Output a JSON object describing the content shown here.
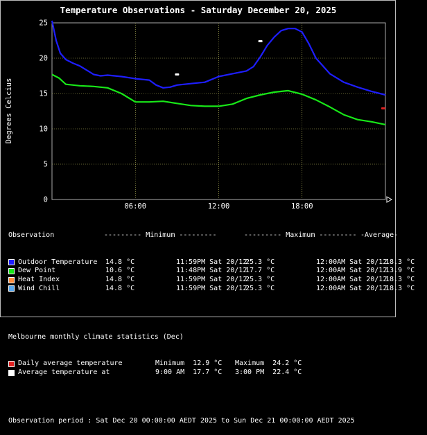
{
  "title": "Temperature Observations - Saturday December 20, 2025",
  "chart_data": {
    "type": "line",
    "title": "Temperature Observations - Saturday December 20, 2025",
    "ylabel": "Degrees Celcius",
    "xlabel": "",
    "ylim": [
      0,
      25
    ],
    "xlim": [
      0,
      24
    ],
    "yticks": [
      "0",
      "5",
      "10",
      "15",
      "20",
      "25"
    ],
    "xticks": [
      {
        "x": 6,
        "label": "06:00"
      },
      {
        "x": 12,
        "label": "12:00"
      },
      {
        "x": 18,
        "label": "18:00"
      }
    ],
    "grid": true,
    "series": [
      {
        "name": "Outdoor Temperature",
        "color": "#1e1eff",
        "x": [
          0,
          0.3,
          0.6,
          1,
          1.5,
          2,
          2.5,
          3,
          3.5,
          4,
          5,
          6,
          7,
          7.5,
          8,
          8.5,
          9,
          10,
          11,
          12,
          13,
          14,
          14.5,
          15,
          15.5,
          16,
          16.5,
          17,
          17.5,
          18,
          18.5,
          19,
          20,
          21,
          22,
          23,
          24
        ],
        "y": [
          25.3,
          22.5,
          20.7,
          19.8,
          19.3,
          18.9,
          18.3,
          17.7,
          17.5,
          17.6,
          17.4,
          17.1,
          16.9,
          16.2,
          15.8,
          15.9,
          16.2,
          16.4,
          16.6,
          17.4,
          17.8,
          18.2,
          18.8,
          20.2,
          21.8,
          23.0,
          23.9,
          24.2,
          24.2,
          23.7,
          22.0,
          20.0,
          17.8,
          16.6,
          15.9,
          15.3,
          14.8
        ]
      },
      {
        "name": "Dew Point",
        "color": "#18e818",
        "x": [
          0,
          0.5,
          1,
          2,
          3,
          4,
          5,
          6,
          7,
          8,
          9,
          10,
          11,
          12,
          13,
          14,
          15,
          16,
          17,
          18,
          19,
          20,
          21,
          22,
          23,
          24
        ],
        "y": [
          17.7,
          17.2,
          16.3,
          16.1,
          16.0,
          15.8,
          15.0,
          13.8,
          13.8,
          13.9,
          13.6,
          13.3,
          13.2,
          13.2,
          13.5,
          14.3,
          14.8,
          15.2,
          15.4,
          14.9,
          14.1,
          13.1,
          12.0,
          11.3,
          11.0,
          10.6
        ]
      }
    ],
    "markers": [
      {
        "name": "Daily average temperature",
        "color": "#e02020",
        "x": 23.85,
        "y": 12.9
      },
      {
        "name": "Average temperature at",
        "color": "#ffffff",
        "x": 9.0,
        "y": 17.7
      },
      {
        "name": "Average temperature at",
        "color": "#ffffff",
        "x": 15.0,
        "y": 22.4
      }
    ]
  },
  "stats": {
    "headers": {
      "observation": "Observation",
      "minimum": "--------- Minimum ---------",
      "maximum": "--------- Maximum ---------",
      "average": "-Average-"
    },
    "rows": [
      {
        "name": "Outdoor Temperature",
        "color": "#1e1eff",
        "min": "14.8 °C",
        "min_time": "11:59PM Sat 20/12",
        "max": "25.3 °C",
        "max_time": "12:00AM Sat 20/12",
        "avg": "18.3 °C"
      },
      {
        "name": "Dew Point",
        "color": "#18e818",
        "min": "10.6 °C",
        "min_time": "11:48PM Sat 20/12",
        "max": "17.7 °C",
        "max_time": "12:00AM Sat 20/12",
        "avg": "13.9 °C"
      },
      {
        "name": "Heat Index",
        "color": "#ff8c3c",
        "min": "14.8 °C",
        "min_time": "11:59PM Sat 20/12",
        "max": "25.3 °C",
        "max_time": "12:00AM Sat 20/12",
        "avg": "18.3 °C"
      },
      {
        "name": "Wind Chill",
        "color": "#5aaaf0",
        "min": "14.8 °C",
        "min_time": "11:59PM Sat 20/12",
        "max": "25.3 °C",
        "max_time": "12:00AM Sat 20/12",
        "avg": "18.3 °C"
      }
    ]
  },
  "monthly": {
    "title": "Melbourne monthly climate statistics (Dec)",
    "rows": [
      {
        "name": "Daily average temperature",
        "color": "#e02020",
        "a": "Minimum  12.9 °C",
        "b": "Maximum  24.2 °C"
      },
      {
        "name": "Average temperature at",
        "color": "#ffffff",
        "a": "9:00 AM  17.7 °C",
        "b": "3:00 PM  22.4 °C"
      }
    ]
  },
  "period": "Observation period : Sat Dec 20 00:00:00 AEDT 2025 to Sun Dec 21 00:00:00 AEDT 2025"
}
